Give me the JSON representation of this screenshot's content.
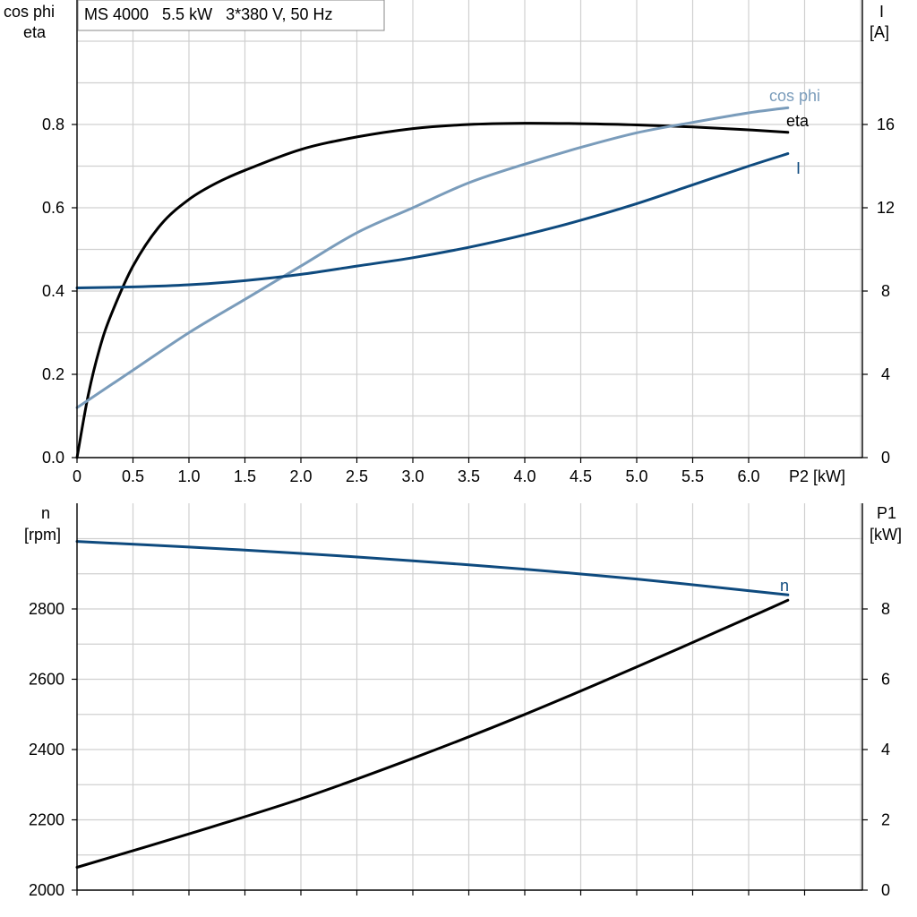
{
  "colors": {
    "eta": "#000000",
    "cos_phi": "#7a9cbb",
    "current": "#0e4a7e",
    "speed": "#0e4a7e",
    "p1": "#000000",
    "grid": "#d0d0d0"
  },
  "chart_data": [
    {
      "type": "line",
      "title": "MS 4000   5.5 kW   3*380 V, 50 Hz",
      "xlabel": "P2 [kW]",
      "ylabel_left": [
        "cos phi",
        "eta"
      ],
      "ylabel_right": [
        "I",
        "[A]"
      ],
      "grid": true,
      "x_ticks": [
        "0",
        "0.5",
        "1.0",
        "1.5",
        "2.0",
        "2.5",
        "3.0",
        "3.5",
        "4.0",
        "4.5",
        "5.0",
        "5.5",
        "6.0"
      ],
      "xlim": [
        0,
        7.0
      ],
      "ylim_left": [
        0,
        1.0
      ],
      "ylim_right": [
        0,
        20
      ],
      "y_ticks_left": [
        "0.0",
        "0.2",
        "0.4",
        "0.6",
        "0.8"
      ],
      "y_ticks_right": [
        "0",
        "4",
        "8",
        "12",
        "16"
      ],
      "series": [
        {
          "name": "eta",
          "axis": "left",
          "x": [
            0,
            0.1,
            0.2,
            0.3,
            0.5,
            0.75,
            1.0,
            1.25,
            1.5,
            2.0,
            2.5,
            3.0,
            3.5,
            4.0,
            4.5,
            5.0,
            5.5,
            6.0,
            6.35
          ],
          "y": [
            0.0,
            0.15,
            0.26,
            0.34,
            0.46,
            0.56,
            0.62,
            0.66,
            0.69,
            0.74,
            0.77,
            0.79,
            0.8,
            0.803,
            0.802,
            0.799,
            0.794,
            0.787,
            0.781
          ]
        },
        {
          "name": "cos phi",
          "axis": "left",
          "x": [
            0,
            0.5,
            1.0,
            1.5,
            2.0,
            2.5,
            3.0,
            3.5,
            4.0,
            4.5,
            5.0,
            5.5,
            6.0,
            6.35
          ],
          "y": [
            0.12,
            0.21,
            0.3,
            0.38,
            0.46,
            0.54,
            0.6,
            0.66,
            0.705,
            0.745,
            0.78,
            0.805,
            0.828,
            0.84
          ]
        },
        {
          "name": "I",
          "axis": "right",
          "x": [
            0,
            0.5,
            1.0,
            1.5,
            2.0,
            2.5,
            3.0,
            3.5,
            4.0,
            4.5,
            5.0,
            5.5,
            6.0,
            6.35
          ],
          "y": [
            8.15,
            8.2,
            8.3,
            8.5,
            8.8,
            9.2,
            9.6,
            10.1,
            10.7,
            11.4,
            12.2,
            13.1,
            14.0,
            14.6
          ]
        }
      ]
    },
    {
      "type": "line",
      "title": "",
      "xlabel": "",
      "ylabel_left": [
        "n",
        "[rpm]"
      ],
      "ylabel_right": [
        "P1",
        "[kW]"
      ],
      "grid": true,
      "xlim": [
        0,
        7.0
      ],
      "ylim_left": [
        2000,
        3000
      ],
      "ylim_right": [
        0,
        10
      ],
      "y_ticks_left": [
        "2000",
        "2200",
        "2400",
        "2600",
        "2800"
      ],
      "y_ticks_right": [
        "0",
        "2",
        "4",
        "6",
        "8"
      ],
      "series": [
        {
          "name": "n",
          "axis": "left",
          "x": [
            0,
            1.0,
            2.0,
            3.0,
            4.0,
            5.0,
            6.0,
            6.35
          ],
          "y": [
            2992,
            2976,
            2958,
            2937,
            2913,
            2885,
            2852,
            2840
          ]
        },
        {
          "name": "",
          "axis": "right",
          "x": [
            0,
            1.0,
            2.0,
            3.0,
            4.0,
            5.0,
            6.0,
            6.35
          ],
          "y": [
            0.65,
            1.6,
            2.6,
            3.75,
            5.0,
            6.35,
            7.75,
            8.25
          ]
        }
      ]
    }
  ]
}
